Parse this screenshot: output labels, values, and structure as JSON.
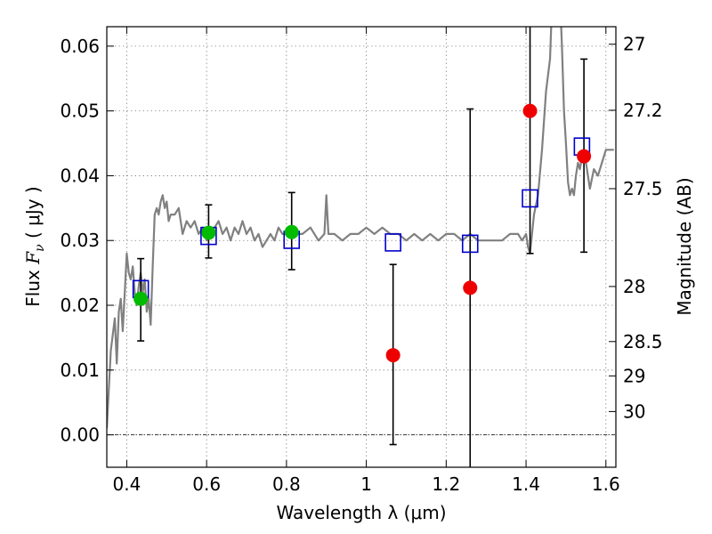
{
  "chart_data": {
    "type": "scatter",
    "xlabel": "Wavelength  λ (μm)",
    "ylabel": "Flux  F_ν  ( μJy )",
    "ylabel_parts": {
      "prefix": "Flux  ",
      "symbol": "F",
      "subscript": "ν",
      "suffix": "  ( μJy )"
    },
    "y2label": "Magnitude (AB)",
    "xlim": [
      0.35,
      1.625
    ],
    "ylim": [
      -0.005,
      0.063
    ],
    "grid": true,
    "x_ticks": [
      {
        "value": 0.4,
        "label": "0.4"
      },
      {
        "value": 0.6,
        "label": "0.6"
      },
      {
        "value": 0.8,
        "label": "0.8"
      },
      {
        "value": 1.0,
        "label": "1"
      },
      {
        "value": 1.2,
        "label": "1.2"
      },
      {
        "value": 1.4,
        "label": "1.4"
      },
      {
        "value": 1.6,
        "label": "1.6"
      }
    ],
    "y_ticks": [
      {
        "value": 0.0,
        "label": "0.00"
      },
      {
        "value": 0.01,
        "label": "0.01"
      },
      {
        "value": 0.02,
        "label": "0.02"
      },
      {
        "value": 0.03,
        "label": "0.03"
      },
      {
        "value": 0.04,
        "label": "0.04"
      },
      {
        "value": 0.05,
        "label": "0.05"
      },
      {
        "value": 0.06,
        "label": "0.06"
      }
    ],
    "y2_ticks": [
      {
        "flux": 0.0603,
        "label": "27"
      },
      {
        "flux": 0.0501,
        "label": "27.2"
      },
      {
        "flux": 0.038,
        "label": "27.5"
      },
      {
        "flux": 0.0229,
        "label": "28"
      },
      {
        "flux": 0.0144,
        "label": "28.5"
      },
      {
        "flux": 0.0091,
        "label": "29"
      },
      {
        "flux": 0.0036,
        "label": "30"
      }
    ],
    "colors": {
      "model": "#808080",
      "model_photometry": "#0000cc",
      "detections": "#00bb00",
      "low_significance": "#ee0000",
      "errorbars": "#000000",
      "grid": "#888888",
      "zero_line": "#000000"
    },
    "series": [
      {
        "type": "line",
        "x": [
          0.35,
          0.36,
          0.37,
          0.375,
          0.38,
          0.385,
          0.39,
          0.395,
          0.4,
          0.405,
          0.41,
          0.415,
          0.42,
          0.425,
          0.43,
          0.435,
          0.44,
          0.445,
          0.45,
          0.455,
          0.46,
          0.465,
          0.47,
          0.475,
          0.48,
          0.485,
          0.49,
          0.495,
          0.5,
          0.505,
          0.51,
          0.52,
          0.53,
          0.54,
          0.55,
          0.56,
          0.57,
          0.58,
          0.59,
          0.6,
          0.61,
          0.62,
          0.63,
          0.64,
          0.65,
          0.66,
          0.67,
          0.68,
          0.69,
          0.7,
          0.71,
          0.72,
          0.73,
          0.74,
          0.75,
          0.76,
          0.77,
          0.78,
          0.79,
          0.8,
          0.82,
          0.84,
          0.86,
          0.88,
          0.895,
          0.9,
          0.905,
          0.92,
          0.94,
          0.96,
          0.98,
          1.0,
          1.02,
          1.04,
          1.06,
          1.08,
          1.1,
          1.12,
          1.14,
          1.16,
          1.18,
          1.2,
          1.22,
          1.24,
          1.26,
          1.28,
          1.3,
          1.32,
          1.34,
          1.36,
          1.38,
          1.39,
          1.4,
          1.405,
          1.41,
          1.42,
          1.43,
          1.44,
          1.45,
          1.46,
          1.47,
          1.48,
          1.49,
          1.495,
          1.5,
          1.505,
          1.51,
          1.515,
          1.52,
          1.525,
          1.53,
          1.535,
          1.54,
          1.545,
          1.55,
          1.56,
          1.57,
          1.58,
          1.59,
          1.6,
          1.61,
          1.62
        ],
        "y": [
          0.001,
          0.013,
          0.018,
          0.011,
          0.019,
          0.021,
          0.016,
          0.022,
          0.028,
          0.025,
          0.024,
          0.026,
          0.022,
          0.02,
          0.023,
          0.025,
          0.022,
          0.024,
          0.019,
          0.021,
          0.017,
          0.026,
          0.034,
          0.035,
          0.034,
          0.036,
          0.037,
          0.035,
          0.036,
          0.033,
          0.034,
          0.034,
          0.035,
          0.031,
          0.033,
          0.032,
          0.033,
          0.031,
          0.032,
          0.03,
          0.031,
          0.032,
          0.033,
          0.031,
          0.032,
          0.03,
          0.032,
          0.031,
          0.033,
          0.031,
          0.032,
          0.03,
          0.031,
          0.029,
          0.03,
          0.031,
          0.03,
          0.032,
          0.031,
          0.031,
          0.031,
          0.031,
          0.032,
          0.03,
          0.031,
          0.037,
          0.031,
          0.031,
          0.03,
          0.031,
          0.031,
          0.032,
          0.031,
          0.032,
          0.031,
          0.031,
          0.03,
          0.031,
          0.03,
          0.031,
          0.03,
          0.031,
          0.031,
          0.03,
          0.031,
          0.03,
          0.03,
          0.03,
          0.03,
          0.031,
          0.031,
          0.03,
          0.031,
          0.029,
          0.028,
          0.034,
          0.037,
          0.044,
          0.053,
          0.058,
          0.075,
          0.075,
          0.06,
          0.05,
          0.045,
          0.039,
          0.037,
          0.038,
          0.037,
          0.04,
          0.042,
          0.041,
          0.043,
          0.044,
          0.042,
          0.038,
          0.041,
          0.04,
          0.042,
          0.044,
          0.044,
          0.044
        ]
      },
      {
        "type": "scatter",
        "marker": "square",
        "x": [
          0.435,
          0.605,
          0.813,
          1.067,
          1.26,
          1.41,
          1.54
        ],
        "y": [
          0.0225,
          0.0307,
          0.0301,
          0.0297,
          0.0295,
          0.0365,
          0.0445
        ]
      },
      {
        "type": "scatter",
        "marker": "circle",
        "x": [
          0.435,
          0.605,
          0.813
        ],
        "y": [
          0.021,
          0.0312,
          0.0313
        ],
        "yerr": [
          [
            0.0145,
            0.0272
          ],
          [
            0.0273,
            0.0355
          ],
          [
            0.0255,
            0.0374
          ]
        ]
      },
      {
        "type": "scatter",
        "marker": "circle",
        "x": [
          1.067,
          1.26,
          1.41,
          1.545
        ],
        "y": [
          0.0123,
          0.0227,
          0.05,
          0.043
        ],
        "yerr": [
          [
            -0.0015,
            0.0263
          ],
          [
            -0.007,
            0.0503
          ],
          [
            0.028,
            0.07
          ],
          [
            0.0282,
            0.058
          ]
        ]
      }
    ]
  }
}
